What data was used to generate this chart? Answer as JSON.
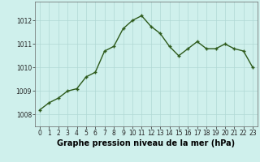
{
  "hours": [
    0,
    1,
    2,
    3,
    4,
    5,
    6,
    7,
    8,
    9,
    10,
    11,
    12,
    13,
    14,
    15,
    16,
    17,
    18,
    19,
    20,
    21,
    22,
    23
  ],
  "pressure": [
    1008.2,
    1008.5,
    1008.7,
    1009.0,
    1009.1,
    1009.6,
    1009.8,
    1010.7,
    1010.9,
    1011.65,
    1012.0,
    1012.2,
    1011.75,
    1011.45,
    1010.9,
    1010.5,
    1010.8,
    1011.1,
    1010.8,
    1010.8,
    1011.0,
    1010.8,
    1010.7,
    1010.0
  ],
  "line_color": "#2d5a1b",
  "marker": "+",
  "bg_color": "#cff0ec",
  "grid_color": "#b0d8d4",
  "xlabel": "Graphe pression niveau de la mer (hPa)",
  "ylim": [
    1007.5,
    1012.8
  ],
  "xlim": [
    -0.5,
    23.5
  ],
  "yticks": [
    1008,
    1009,
    1010,
    1011,
    1012
  ],
  "xticks": [
    0,
    1,
    2,
    3,
    4,
    5,
    6,
    7,
    8,
    9,
    10,
    11,
    12,
    13,
    14,
    15,
    16,
    17,
    18,
    19,
    20,
    21,
    22,
    23
  ],
  "tick_fontsize": 5.5,
  "xlabel_fontsize": 7.0,
  "linewidth": 1.0,
  "markersize": 3.5
}
